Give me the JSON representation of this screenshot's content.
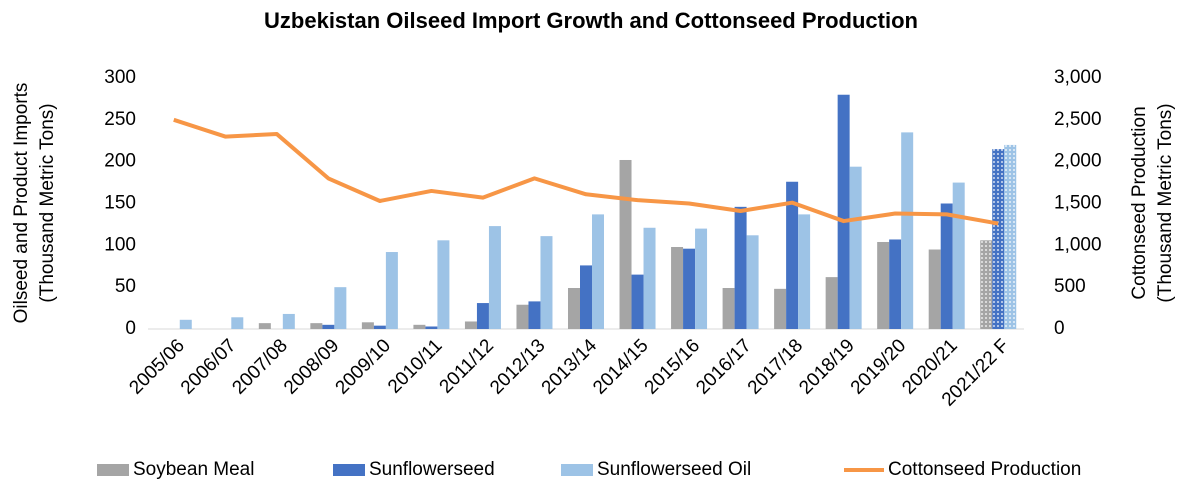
{
  "chart_data": {
    "type": "bar_line",
    "title": "Uzbekistan Oilseed Import Growth and Cottonseed Production",
    "y_label": [
      "Oilseed and Product Imports",
      "(Thousand Metric Tons)"
    ],
    "y2_label": [
      "Cottonseed Production",
      "(Thousand Metric Tons)"
    ],
    "categories": [
      "2005/06",
      "2006/07",
      "2007/08",
      "2008/09",
      "2009/10",
      "2010/11",
      "2011/12",
      "2012/13",
      "2013/14",
      "2014/15",
      "2015/16",
      "2016/17",
      "2017/18",
      "2018/19",
      "2019/20",
      "2020/21",
      "2021/22 F"
    ],
    "series": [
      {
        "name": "Soybean Meal",
        "type": "bar",
        "color": "#a5a5a5",
        "values": [
          0,
          0,
          7,
          7,
          8,
          5,
          9,
          29,
          49,
          202,
          98,
          49,
          48,
          62,
          104,
          95,
          106
        ]
      },
      {
        "name": "Sunflowerseed",
        "type": "bar",
        "color": "#4472c4",
        "values": [
          0,
          0,
          0,
          5,
          4,
          3,
          31,
          33,
          76,
          65,
          96,
          146,
          176,
          280,
          107,
          150,
          215
        ]
      },
      {
        "name": "Sunflowerseed Oil",
        "type": "bar",
        "color": "#9dc3e6",
        "values": [
          11,
          14,
          18,
          50,
          92,
          106,
          123,
          111,
          137,
          121,
          120,
          112,
          137,
          194,
          235,
          175,
          220
        ]
      },
      {
        "name": "Cottonseed Production",
        "type": "line",
        "axis": "y2",
        "color": "#f79646",
        "values": [
          2500,
          2300,
          2330,
          1800,
          1530,
          1650,
          1570,
          1800,
          1610,
          1540,
          1500,
          1410,
          1510,
          1290,
          1380,
          1370,
          1260
        ]
      }
    ],
    "ylim": [
      0,
      300
    ],
    "yticks": [
      0,
      50,
      100,
      150,
      200,
      250,
      300
    ],
    "y2lim": [
      0,
      3000
    ],
    "y2ticks": [
      0,
      500,
      {
        "value": 1000,
        "label": "1,000"
      },
      {
        "value": 1500,
        "label": "1,500"
      },
      {
        "value": 2000,
        "label": "2,000"
      },
      {
        "value": 2500,
        "label": "2,500"
      },
      {
        "value": 3000,
        "label": "3,000"
      }
    ],
    "legend": "bottom"
  }
}
